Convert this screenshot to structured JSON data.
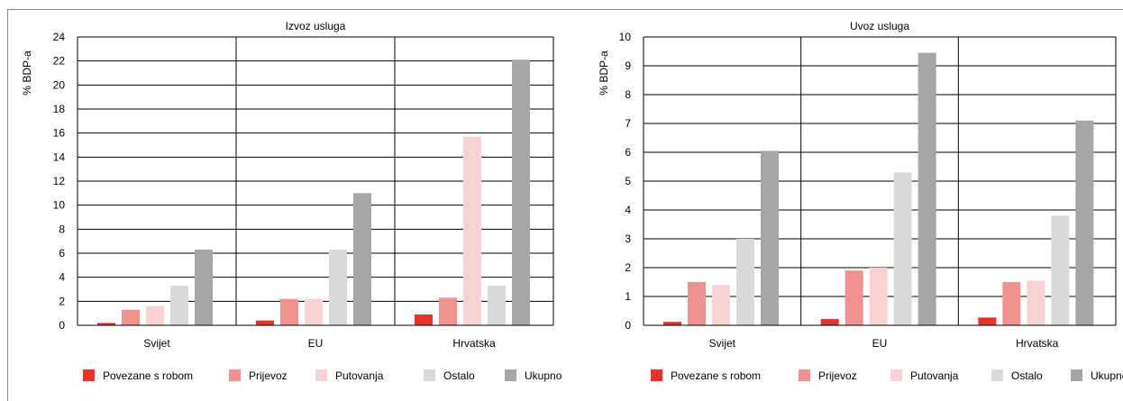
{
  "chart_data": [
    {
      "type": "bar",
      "title": "Izvoz usluga",
      "ylabel": "% BDP-a",
      "ylim": [
        0,
        24
      ],
      "yticks": [
        0,
        2,
        4,
        6,
        8,
        10,
        12,
        14,
        16,
        18,
        20,
        22,
        24
      ],
      "categories": [
        "Svijet",
        "EU",
        "Hrvatska"
      ],
      "series": [
        {
          "name": "Povezane s robom",
          "color": "#e8322a",
          "values": [
            0.2,
            0.4,
            0.9
          ]
        },
        {
          "name": "Prijevoz",
          "color": "#f0928f",
          "values": [
            1.3,
            2.2,
            2.3
          ]
        },
        {
          "name": "Putovanja",
          "color": "#f8d2d2",
          "values": [
            1.6,
            2.2,
            15.7
          ]
        },
        {
          "name": "Ostalo",
          "color": "#d9d9d9",
          "values": [
            3.3,
            6.3,
            3.3
          ]
        },
        {
          "name": "Ukupno",
          "color": "#a6a6a6",
          "values": [
            6.3,
            11.0,
            22.1
          ]
        }
      ],
      "grid": true,
      "legend_position": "bottom"
    },
    {
      "type": "bar",
      "title": "Uvoz usluga",
      "ylabel": "% BDP-a",
      "ylim": [
        0,
        10
      ],
      "yticks": [
        0,
        1,
        2,
        3,
        4,
        5,
        6,
        7,
        8,
        9,
        10
      ],
      "categories": [
        "Svijet",
        "EU",
        "Hrvatska"
      ],
      "series": [
        {
          "name": "Povezane s robom",
          "color": "#e8322a",
          "values": [
            0.12,
            0.22,
            0.27
          ]
        },
        {
          "name": "Prijevoz",
          "color": "#f0928f",
          "values": [
            1.5,
            1.9,
            1.5
          ]
        },
        {
          "name": "Putovanja",
          "color": "#f8d2d2",
          "values": [
            1.4,
            2.0,
            1.55
          ]
        },
        {
          "name": "Ostalo",
          "color": "#d9d9d9",
          "values": [
            3.0,
            5.3,
            3.8
          ]
        },
        {
          "name": "Ukupno",
          "color": "#a6a6a6",
          "values": [
            6.05,
            9.45,
            7.1
          ]
        }
      ],
      "grid": true,
      "legend_position": "bottom"
    }
  ]
}
